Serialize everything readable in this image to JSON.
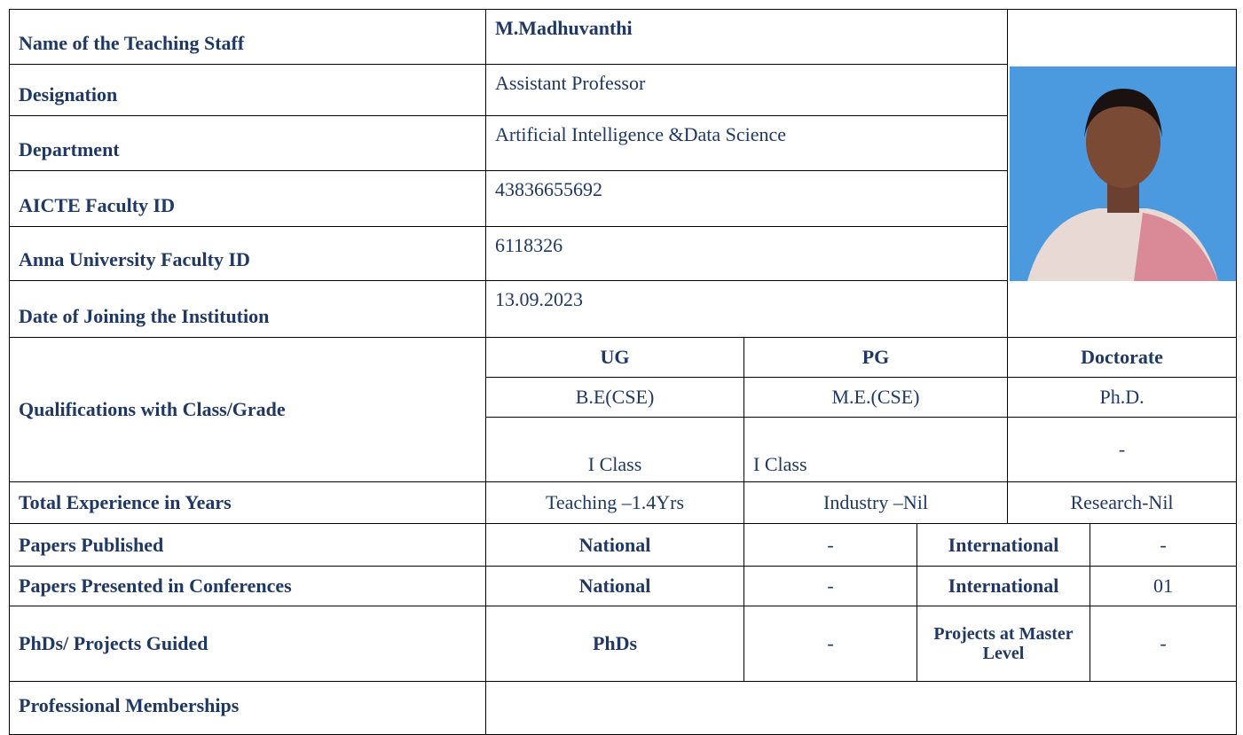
{
  "profile": {
    "rows": [
      {
        "label": "Name of the Teaching Staff",
        "value": "M.Madhuvanthi"
      },
      {
        "label": "Designation",
        "value": "Assistant Professor"
      },
      {
        "label": "Department",
        "value": "Artificial Intelligence &Data Science"
      },
      {
        "label": "AICTE Faculty ID",
        "value": "43836655692"
      },
      {
        "label": "Anna University Faculty ID",
        "value": "6118326"
      },
      {
        "label": "Date of Joining the Institution",
        "value": "13.09.2023"
      }
    ]
  },
  "qualifications": {
    "label": "Qualifications with Class/Grade",
    "headers": [
      "UG",
      "PG",
      "Doctorate"
    ],
    "degrees": [
      "B.E(CSE)",
      "M.E.(CSE)",
      "Ph.D."
    ],
    "classes": [
      "I Class",
      "I Class",
      "-"
    ]
  },
  "experience": {
    "label": "Total Experience in Years",
    "values": [
      "Teaching –1.4Yrs",
      "Industry –Nil",
      "Research-Nil"
    ]
  },
  "papers_published": {
    "label": "Papers Published",
    "national_label": "National",
    "national": "-",
    "international_label": "International",
    "international": "-"
  },
  "papers_presented": {
    "label": "Papers Presented in Conferences",
    "national_label": "National",
    "national": "-",
    "international_label": "International",
    "international": "01"
  },
  "guided": {
    "label": "PhDs/ Projects Guided",
    "phds_label": "PhDs",
    "phds": "-",
    "projects_label": "Projects at Master Level",
    "projects": "-"
  },
  "memberships": {
    "label": "Professional Memberships"
  }
}
